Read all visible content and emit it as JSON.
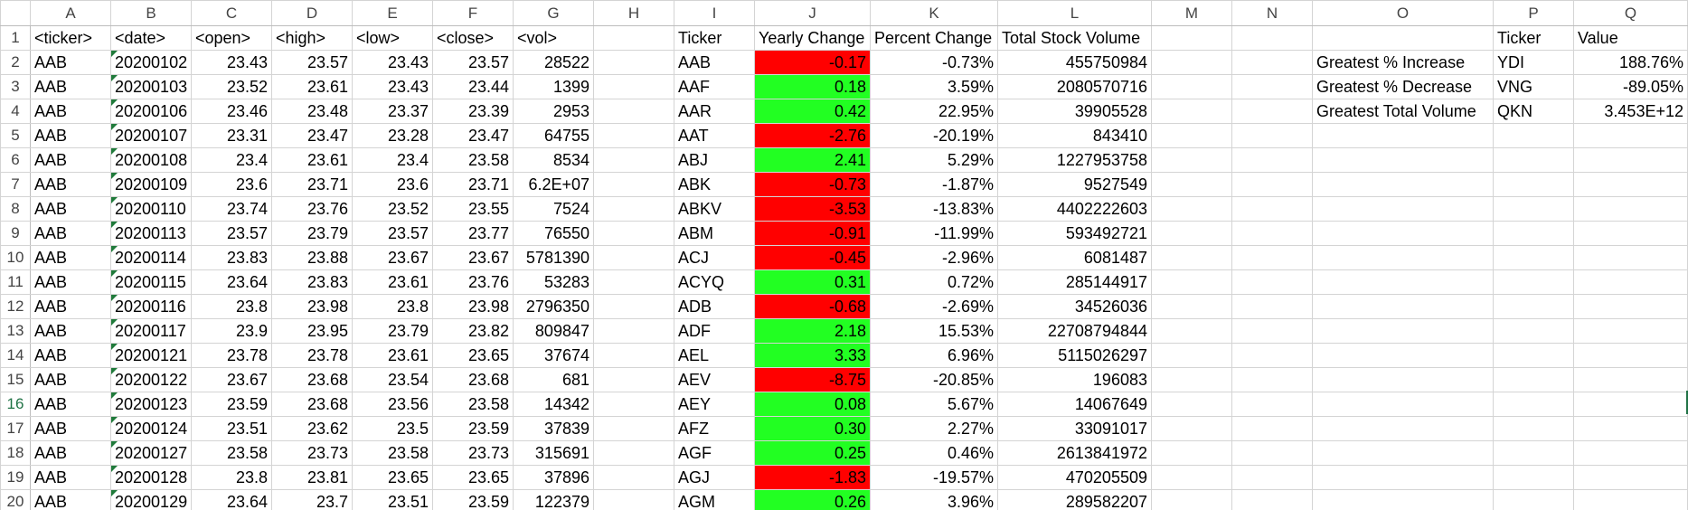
{
  "colors": {
    "positive": "#22ff22",
    "negative": "#ff0000",
    "select_accent": "#217346"
  },
  "columns": [
    "A",
    "B",
    "C",
    "D",
    "E",
    "F",
    "G",
    "H",
    "I",
    "J",
    "K",
    "L",
    "M",
    "N",
    "O",
    "P",
    "Q"
  ],
  "header_row": [
    "<ticker>",
    "<date>",
    "<open>",
    "<high>",
    "<low>",
    "<close>",
    "<vol>",
    "",
    "Ticker",
    "Yearly Change",
    "Percent Change",
    "Total Stock Volume",
    "",
    "",
    "",
    "Ticker",
    "Value"
  ],
  "rows": [
    {
      "num": "2",
      "A": "AAB",
      "B": "20200102",
      "C": "23.43",
      "D": "23.57",
      "E": "23.43",
      "F": "23.57",
      "G": "28522",
      "I": "AAB",
      "J": "-0.17",
      "Jsign": "neg",
      "K": "-0.73%",
      "L": "455750984",
      "O": "Greatest % Increase",
      "P": "YDI",
      "Q": "188.76%"
    },
    {
      "num": "3",
      "A": "AAB",
      "B": "20200103",
      "C": "23.52",
      "D": "23.61",
      "E": "23.43",
      "F": "23.44",
      "G": "1399",
      "I": "AAF",
      "J": "0.18",
      "Jsign": "pos",
      "K": "3.59%",
      "L": "2080570716",
      "O": "Greatest % Decrease",
      "P": "VNG",
      "Q": "-89.05%"
    },
    {
      "num": "4",
      "A": "AAB",
      "B": "20200106",
      "C": "23.46",
      "D": "23.48",
      "E": "23.37",
      "F": "23.39",
      "G": "2953",
      "I": "AAR",
      "J": "0.42",
      "Jsign": "pos",
      "K": "22.95%",
      "L": "39905528",
      "O": "Greatest Total Volume",
      "P": "QKN",
      "Q": "3.453E+12"
    },
    {
      "num": "5",
      "A": "AAB",
      "B": "20200107",
      "C": "23.31",
      "D": "23.47",
      "E": "23.28",
      "F": "23.47",
      "G": "64755",
      "I": "AAT",
      "J": "-2.76",
      "Jsign": "neg",
      "K": "-20.19%",
      "L": "843410",
      "O": "",
      "P": "",
      "Q": ""
    },
    {
      "num": "6",
      "A": "AAB",
      "B": "20200108",
      "C": "23.4",
      "D": "23.61",
      "E": "23.4",
      "F": "23.58",
      "G": "8534",
      "I": "ABJ",
      "J": "2.41",
      "Jsign": "pos",
      "K": "5.29%",
      "L": "1227953758",
      "O": "",
      "P": "",
      "Q": ""
    },
    {
      "num": "7",
      "A": "AAB",
      "B": "20200109",
      "C": "23.6",
      "D": "23.71",
      "E": "23.6",
      "F": "23.71",
      "G": "6.2E+07",
      "I": "ABK",
      "J": "-0.73",
      "Jsign": "neg",
      "K": "-1.87%",
      "L": "9527549",
      "O": "",
      "P": "",
      "Q": ""
    },
    {
      "num": "8",
      "A": "AAB",
      "B": "20200110",
      "C": "23.74",
      "D": "23.76",
      "E": "23.52",
      "F": "23.55",
      "G": "7524",
      "I": "ABKV",
      "J": "-3.53",
      "Jsign": "neg",
      "K": "-13.83%",
      "L": "4402222603",
      "O": "",
      "P": "",
      "Q": ""
    },
    {
      "num": "9",
      "A": "AAB",
      "B": "20200113",
      "C": "23.57",
      "D": "23.79",
      "E": "23.57",
      "F": "23.77",
      "G": "76550",
      "I": "ABM",
      "J": "-0.91",
      "Jsign": "neg",
      "K": "-11.99%",
      "L": "593492721",
      "O": "",
      "P": "",
      "Q": ""
    },
    {
      "num": "10",
      "A": "AAB",
      "B": "20200114",
      "C": "23.83",
      "D": "23.88",
      "E": "23.67",
      "F": "23.67",
      "G": "5781390",
      "I": "ACJ",
      "J": "-0.45",
      "Jsign": "neg",
      "K": "-2.96%",
      "L": "6081487",
      "O": "",
      "P": "",
      "Q": ""
    },
    {
      "num": "11",
      "A": "AAB",
      "B": "20200115",
      "C": "23.64",
      "D": "23.83",
      "E": "23.61",
      "F": "23.76",
      "G": "53283",
      "I": "ACYQ",
      "J": "0.31",
      "Jsign": "pos",
      "K": "0.72%",
      "L": "285144917",
      "O": "",
      "P": "",
      "Q": ""
    },
    {
      "num": "12",
      "A": "AAB",
      "B": "20200116",
      "C": "23.8",
      "D": "23.98",
      "E": "23.8",
      "F": "23.98",
      "G": "2796350",
      "I": "ADB",
      "J": "-0.68",
      "Jsign": "neg",
      "K": "-2.69%",
      "L": "34526036",
      "O": "",
      "P": "",
      "Q": ""
    },
    {
      "num": "13",
      "A": "AAB",
      "B": "20200117",
      "C": "23.9",
      "D": "23.95",
      "E": "23.79",
      "F": "23.82",
      "G": "809847",
      "I": "ADF",
      "J": "2.18",
      "Jsign": "pos",
      "K": "15.53%",
      "L": "22708794844",
      "O": "",
      "P": "",
      "Q": ""
    },
    {
      "num": "14",
      "A": "AAB",
      "B": "20200121",
      "C": "23.78",
      "D": "23.78",
      "E": "23.61",
      "F": "23.65",
      "G": "37674",
      "I": "AEL",
      "J": "3.33",
      "Jsign": "pos",
      "K": "6.96%",
      "L": "5115026297",
      "O": "",
      "P": "",
      "Q": ""
    },
    {
      "num": "15",
      "A": "AAB",
      "B": "20200122",
      "C": "23.67",
      "D": "23.68",
      "E": "23.54",
      "F": "23.68",
      "G": "681",
      "I": "AEV",
      "J": "-8.75",
      "Jsign": "neg",
      "K": "-20.85%",
      "L": "196083",
      "O": "",
      "P": "",
      "Q": ""
    },
    {
      "num": "16",
      "A": "AAB",
      "B": "20200123",
      "C": "23.59",
      "D": "23.68",
      "E": "23.56",
      "F": "23.58",
      "G": "14342",
      "I": "AEY",
      "J": "0.08",
      "Jsign": "pos",
      "K": "5.67%",
      "L": "14067649",
      "O": "",
      "P": "",
      "Q": ""
    },
    {
      "num": "17",
      "A": "AAB",
      "B": "20200124",
      "C": "23.51",
      "D": "23.62",
      "E": "23.5",
      "F": "23.59",
      "G": "37839",
      "I": "AFZ",
      "J": "0.30",
      "Jsign": "pos",
      "K": "2.27%",
      "L": "33091017",
      "O": "",
      "P": "",
      "Q": ""
    },
    {
      "num": "18",
      "A": "AAB",
      "B": "20200127",
      "C": "23.58",
      "D": "23.73",
      "E": "23.58",
      "F": "23.73",
      "G": "315691",
      "I": "AGF",
      "J": "0.25",
      "Jsign": "pos",
      "K": "0.46%",
      "L": "2613841972",
      "O": "",
      "P": "",
      "Q": ""
    },
    {
      "num": "19",
      "A": "AAB",
      "B": "20200128",
      "C": "23.8",
      "D": "23.81",
      "E": "23.65",
      "F": "23.65",
      "G": "37896",
      "I": "AGJ",
      "J": "-1.83",
      "Jsign": "neg",
      "K": "-19.57%",
      "L": "470205509",
      "O": "",
      "P": "",
      "Q": ""
    },
    {
      "num": "20",
      "A": "AAB",
      "B": "20200129",
      "C": "23.64",
      "D": "23.7",
      "E": "23.51",
      "F": "23.59",
      "G": "122379",
      "I": "AGM",
      "J": "0.26",
      "Jsign": "pos",
      "K": "3.96%",
      "L": "289582207",
      "O": "",
      "P": "",
      "Q": ""
    }
  ]
}
